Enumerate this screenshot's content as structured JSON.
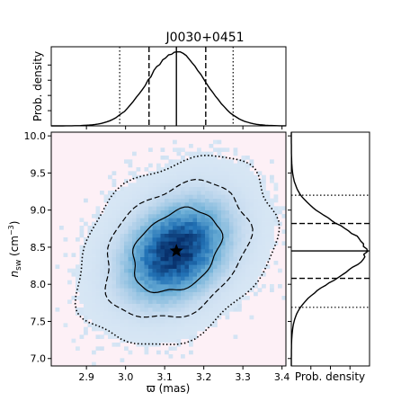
{
  "chart_data": {
    "type": "heatmap",
    "title": "J0030+0451",
    "xlabel": "ϖ (mas)",
    "ylabel_main": "n",
    "ylabel_sub": "sw",
    "ylabel_unit": " (cm",
    "ylabel_exp": "−3",
    "ylabel_close": ")",
    "xlim": [
      2.81,
      3.41
    ],
    "ylim": [
      6.9,
      10.05
    ],
    "x_ticks": [
      2.9,
      3.0,
      3.1,
      3.2,
      3.3,
      3.4
    ],
    "y_ticks": [
      7.0,
      7.5,
      8.0,
      8.5,
      9.0,
      9.5,
      10.0
    ],
    "x_tick_labels": [
      "2.9",
      "3.0",
      "3.1",
      "3.2",
      "3.3",
      "3.4"
    ],
    "y_tick_labels": [
      "7.0",
      "7.5",
      "8.0",
      "8.5",
      "9.0",
      "9.5",
      "10.0"
    ],
    "background_color": "#fdf0f6",
    "colormap": [
      "#f7fbff",
      "#c6dbef",
      "#6baed6",
      "#2171b5",
      "#08306b"
    ],
    "best_fit": {
      "x": 3.13,
      "y": 8.45
    },
    "distribution": {
      "x_mean": 3.13,
      "x_std": 0.074,
      "y_mean": 8.45,
      "y_std": 0.37,
      "correlation": 0.3
    },
    "contours": [
      {
        "level_sigma": 1,
        "style": "solid"
      },
      {
        "level_sigma": 2,
        "style": "dashed"
      },
      {
        "level_sigma": 3,
        "style": "dotted"
      }
    ],
    "top_marginal": {
      "ylabel": "Prob. density",
      "median": 3.13,
      "sigma1": [
        3.06,
        3.205
      ],
      "sigma2": [
        2.985,
        3.275
      ]
    },
    "right_marginal": {
      "xlabel": "Prob. density",
      "median": 8.45,
      "sigma1": [
        8.08,
        8.82
      ],
      "sigma2": [
        7.69,
        9.2
      ]
    }
  }
}
